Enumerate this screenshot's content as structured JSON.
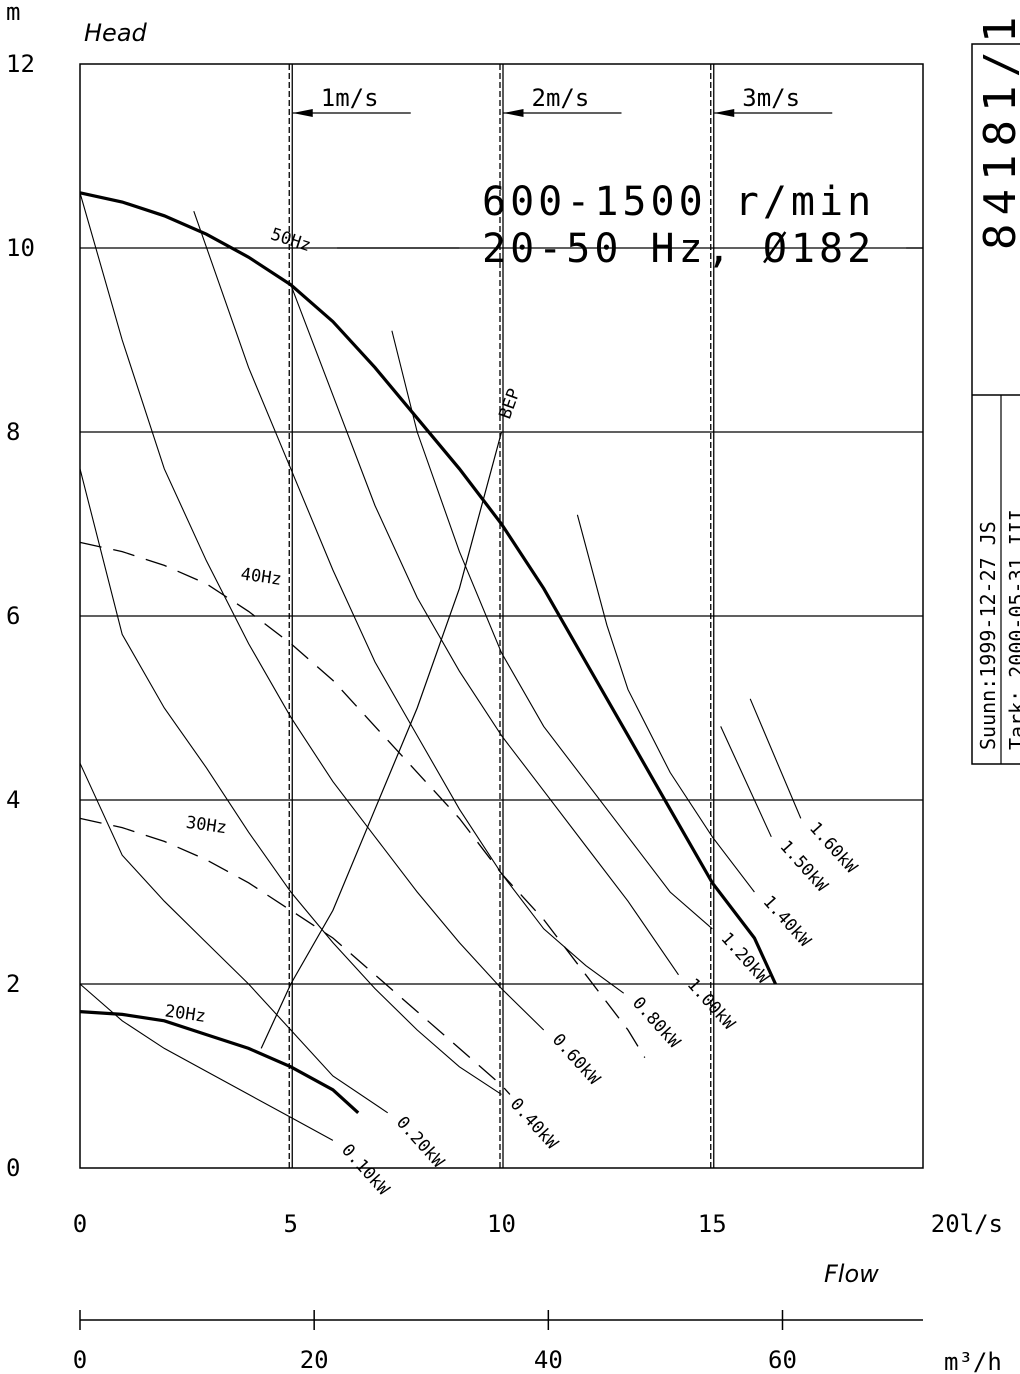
{
  "chart_data": {
    "type": "line",
    "title": "",
    "ylabel": "Head",
    "yunit": "m",
    "xlabel": "Flow",
    "xunit": "l/s",
    "xlim": [
      0,
      20
    ],
    "ylim": [
      0,
      12
    ],
    "x_ticks": [
      "0",
      "5",
      "10",
      "15",
      "20"
    ],
    "x_tick_values": [
      0,
      5,
      10,
      15,
      20
    ],
    "x_tick_last_label": "20l/s",
    "y_ticks": [
      "0",
      "2",
      "4",
      "6",
      "8",
      "10",
      "12"
    ],
    "y_tick_values": [
      0,
      2,
      4,
      6,
      8,
      10,
      12
    ],
    "secondary_x_axis": {
      "unit": "m³/h",
      "ticks": [
        "0",
        "20",
        "40",
        "60"
      ],
      "tick_values": [
        0,
        20,
        40,
        60
      ],
      "max": 72
    },
    "grid": "horizontal",
    "speed_line": {
      "line1": "600-1500 r/min",
      "line2": "20-50 Hz, Ø182"
    },
    "velocity_lines": [
      {
        "label": "1m/s",
        "x": 5
      },
      {
        "label": "2m/s",
        "x": 10
      },
      {
        "label": "3m/s",
        "x": 15
      }
    ],
    "series": [
      {
        "name": "50Hz",
        "style": "bold",
        "label_at": [
          4.5,
          10.1
        ],
        "x": [
          0,
          1,
          2,
          3,
          4,
          5,
          6,
          7,
          8,
          9,
          10,
          11,
          12,
          13,
          14,
          15,
          16,
          16.5
        ],
        "y": [
          10.6,
          10.5,
          10.35,
          10.15,
          9.9,
          9.6,
          9.2,
          8.7,
          8.15,
          7.6,
          7.0,
          6.3,
          5.5,
          4.7,
          3.9,
          3.1,
          2.5,
          2.0
        ]
      },
      {
        "name": "40Hz",
        "style": "dashed",
        "label_at": [
          3.8,
          6.4
        ],
        "x": [
          0,
          1,
          2,
          3,
          4,
          5,
          6,
          7,
          8,
          9,
          10,
          11,
          12,
          13,
          13.4
        ],
        "y": [
          6.8,
          6.7,
          6.55,
          6.35,
          6.05,
          5.7,
          5.3,
          4.8,
          4.3,
          3.8,
          3.2,
          2.7,
          2.1,
          1.5,
          1.2
        ]
      },
      {
        "name": "30Hz",
        "style": "dashed",
        "label_at": [
          2.5,
          3.7
        ],
        "x": [
          0,
          1,
          2,
          3,
          4,
          5,
          6,
          7,
          8,
          9,
          10,
          10.2
        ],
        "y": [
          3.8,
          3.7,
          3.55,
          3.35,
          3.1,
          2.8,
          2.5,
          2.1,
          1.7,
          1.3,
          0.9,
          0.8
        ]
      },
      {
        "name": "20Hz",
        "style": "bold",
        "label_at": [
          2.0,
          1.65
        ],
        "x": [
          0,
          1,
          2,
          3,
          4,
          5,
          6,
          6.6
        ],
        "y": [
          1.7,
          1.67,
          1.6,
          1.45,
          1.3,
          1.1,
          0.85,
          0.6
        ]
      }
    ],
    "power_lines": [
      {
        "label": "0.10kW",
        "x": [
          0,
          1,
          2,
          3,
          4,
          5,
          6
        ],
        "y": [
          2.0,
          1.6,
          1.3,
          1.05,
          0.8,
          0.55,
          0.3
        ]
      },
      {
        "label": "0.20kW",
        "x": [
          0,
          1,
          2,
          3,
          4,
          5,
          6,
          7.3
        ],
        "y": [
          4.4,
          3.4,
          2.9,
          2.45,
          2.0,
          1.5,
          1.0,
          0.6
        ]
      },
      {
        "label": "0.40kW",
        "x": [
          0,
          1,
          2,
          3,
          4,
          5,
          6,
          7,
          8,
          9,
          10
        ],
        "y": [
          7.6,
          5.8,
          5.0,
          4.35,
          3.65,
          3.0,
          2.45,
          1.95,
          1.5,
          1.1,
          0.8
        ]
      },
      {
        "label": "0.60kW",
        "x": [
          0,
          1,
          2,
          3,
          4,
          5,
          6,
          7,
          8,
          9,
          10,
          11
        ],
        "y": [
          10.6,
          9.0,
          7.6,
          6.6,
          5.7,
          4.9,
          4.2,
          3.6,
          3.0,
          2.45,
          1.95,
          1.5
        ]
      },
      {
        "label": "0.80kW",
        "x": [
          2.7,
          4,
          5,
          6,
          7,
          8,
          9,
          10,
          11,
          12,
          12.9
        ],
        "y": [
          10.4,
          8.7,
          7.6,
          6.5,
          5.5,
          4.7,
          3.9,
          3.2,
          2.6,
          2.2,
          1.9
        ]
      },
      {
        "label": "1.00kW",
        "x": [
          5,
          6,
          7,
          8,
          9,
          10,
          11,
          12,
          13,
          14.2
        ],
        "y": [
          9.6,
          8.4,
          7.2,
          6.2,
          5.4,
          4.7,
          4.1,
          3.5,
          2.9,
          2.1
        ]
      },
      {
        "label": "1.20kW",
        "x": [
          7.4,
          8,
          9,
          10,
          11,
          12,
          13,
          14,
          15
        ],
        "y": [
          9.1,
          8.0,
          6.7,
          5.6,
          4.8,
          4.2,
          3.6,
          3.0,
          2.6
        ]
      },
      {
        "label": "1.40kW",
        "x": [
          11.8,
          12.5,
          13,
          14,
          15,
          16
        ],
        "y": [
          7.1,
          5.9,
          5.2,
          4.3,
          3.6,
          3.0
        ]
      },
      {
        "label": "1.50kW",
        "x": [
          15.2,
          16.4
        ],
        "y": [
          4.8,
          3.6
        ]
      },
      {
        "label": "1.60kW",
        "x": [
          15.9,
          17.1
        ],
        "y": [
          5.1,
          3.8
        ]
      }
    ],
    "bep_line": {
      "label": "BEP",
      "x": [
        4.3,
        5,
        6,
        7,
        8,
        9,
        10
      ],
      "y": [
        1.3,
        2.0,
        2.8,
        3.9,
        5.0,
        6.3,
        8.0
      ]
    },
    "title_block": {
      "drawing_number": "84181/1",
      "row1": "Suunn:1999-12-27 JS",
      "row2": "Tark: 2000-05-31 III"
    }
  }
}
